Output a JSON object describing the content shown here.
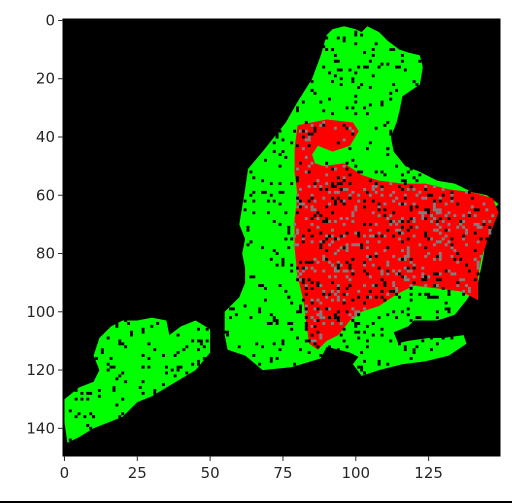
{
  "chart_data": {
    "type": "heatmap",
    "title": "",
    "xlabel": "",
    "ylabel": "",
    "x_range": [
      -0.5,
      149.5
    ],
    "y_range": [
      149.5,
      -0.5
    ],
    "x_ticks": [
      0,
      25,
      50,
      75,
      100,
      125
    ],
    "y_ticks": [
      0,
      20,
      40,
      60,
      80,
      100,
      120,
      140
    ],
    "y_inverted": true,
    "background_color": "#000000",
    "legend": "none",
    "grid": false,
    "categories": [
      {
        "name": "green",
        "color": "#00ff00"
      },
      {
        "name": "red",
        "color": "#ff0000"
      },
      {
        "name": "gray",
        "color": "#808080"
      }
    ],
    "regions": [
      {
        "category": "green",
        "polygon": [
          [
            36,
            108
          ],
          [
            40,
            105
          ],
          [
            45,
            103
          ],
          [
            50,
            106
          ],
          [
            50,
            114
          ],
          [
            45,
            120
          ],
          [
            40,
            123
          ],
          [
            35,
            126
          ],
          [
            30,
            129
          ],
          [
            25,
            131
          ],
          [
            20,
            136
          ],
          [
            15,
            138
          ],
          [
            10,
            140
          ],
          [
            5,
            143
          ],
          [
            1,
            145
          ],
          [
            0,
            138
          ],
          [
            0,
            130
          ],
          [
            5,
            126
          ],
          [
            10,
            124
          ],
          [
            12,
            120
          ],
          [
            10,
            115
          ],
          [
            12,
            109
          ],
          [
            16,
            105
          ],
          [
            20,
            103
          ],
          [
            25,
            103
          ],
          [
            30,
            102
          ],
          [
            35,
            103
          ],
          [
            36,
            108
          ]
        ]
      },
      {
        "category": "green",
        "polygon": [
          [
            62,
            115
          ],
          [
            56,
            113
          ],
          [
            55,
            108
          ],
          [
            55,
            100
          ],
          [
            60,
            95
          ],
          [
            62,
            90
          ],
          [
            62,
            85
          ],
          [
            61,
            80
          ],
          [
            62,
            75
          ],
          [
            60,
            70
          ],
          [
            61,
            64
          ],
          [
            62,
            58
          ],
          [
            63,
            51
          ],
          [
            68,
            45
          ],
          [
            72,
            40
          ],
          [
            76,
            35
          ],
          [
            80,
            28
          ],
          [
            85,
            20
          ],
          [
            88,
            12
          ],
          [
            90,
            5
          ],
          [
            92,
            3
          ],
          [
            96,
            2
          ],
          [
            100,
            3
          ],
          [
            102,
            4
          ],
          [
            104,
            2
          ],
          [
            108,
            4
          ],
          [
            111,
            7
          ],
          [
            115,
            10
          ],
          [
            118,
            11
          ],
          [
            122,
            12
          ],
          [
            123,
            16
          ],
          [
            122,
            22
          ],
          [
            116,
            26
          ],
          [
            115,
            31
          ],
          [
            114,
            35
          ],
          [
            112,
            40
          ],
          [
            113,
            45
          ],
          [
            117,
            50
          ],
          [
            122,
            52
          ],
          [
            128,
            55
          ],
          [
            134,
            56
          ],
          [
            140,
            59
          ],
          [
            145,
            60
          ],
          [
            149,
            63
          ],
          [
            146,
            66
          ],
          [
            145,
            71
          ],
          [
            144,
            80
          ],
          [
            142,
            90
          ],
          [
            138,
            96
          ],
          [
            134,
            101
          ],
          [
            128,
            103
          ],
          [
            120,
            103
          ],
          [
            118,
            105
          ],
          [
            113,
            107
          ],
          [
            115,
            112
          ],
          [
            112,
            115
          ],
          [
            104,
            117
          ],
          [
            98,
            114
          ],
          [
            90,
            112
          ],
          [
            88,
            116
          ],
          [
            78,
            119
          ],
          [
            68,
            120
          ],
          [
            62,
            115
          ]
        ]
      },
      {
        "category": "green",
        "polygon": [
          [
            102,
            114
          ],
          [
            110,
            112
          ],
          [
            118,
            110
          ],
          [
            125,
            109
          ],
          [
            130,
            109
          ],
          [
            137,
            108
          ],
          [
            138,
            111
          ],
          [
            132,
            115
          ],
          [
            124,
            117
          ],
          [
            116,
            118
          ],
          [
            108,
            120
          ],
          [
            102,
            122
          ],
          [
            99,
            118
          ],
          [
            102,
            114
          ]
        ]
      },
      {
        "category": "red",
        "polygon": [
          [
            80,
            36
          ],
          [
            90,
            34
          ],
          [
            99,
            35
          ],
          [
            101,
            38
          ],
          [
            98,
            43
          ],
          [
            92,
            45
          ],
          [
            87,
            43
          ],
          [
            85,
            46
          ],
          [
            86,
            49
          ],
          [
            89,
            50
          ],
          [
            96,
            49
          ],
          [
            102,
            53
          ],
          [
            108,
            55
          ],
          [
            116,
            56
          ],
          [
            124,
            56
          ],
          [
            132,
            58
          ],
          [
            140,
            59
          ],
          [
            147,
            61
          ],
          [
            149,
            66
          ],
          [
            147,
            71
          ],
          [
            145,
            76
          ],
          [
            143,
            82
          ],
          [
            142,
            88
          ],
          [
            142,
            96
          ],
          [
            136,
            93
          ],
          [
            128,
            92
          ],
          [
            120,
            91
          ],
          [
            114,
            94
          ],
          [
            108,
            98
          ],
          [
            102,
            100
          ],
          [
            98,
            103
          ],
          [
            94,
            108
          ],
          [
            90,
            110
          ],
          [
            87,
            113
          ],
          [
            84,
            111
          ],
          [
            83,
            104
          ],
          [
            82,
            96
          ],
          [
            80,
            88
          ],
          [
            79,
            78
          ],
          [
            79,
            68
          ],
          [
            80,
            60
          ],
          [
            79,
            52
          ],
          [
            79,
            44
          ],
          [
            80,
            36
          ]
        ]
      }
    ],
    "speckles": {
      "category": "gray",
      "count": 420,
      "within": "red"
    },
    "holes": {
      "color": "#000000",
      "count": 650
    }
  }
}
